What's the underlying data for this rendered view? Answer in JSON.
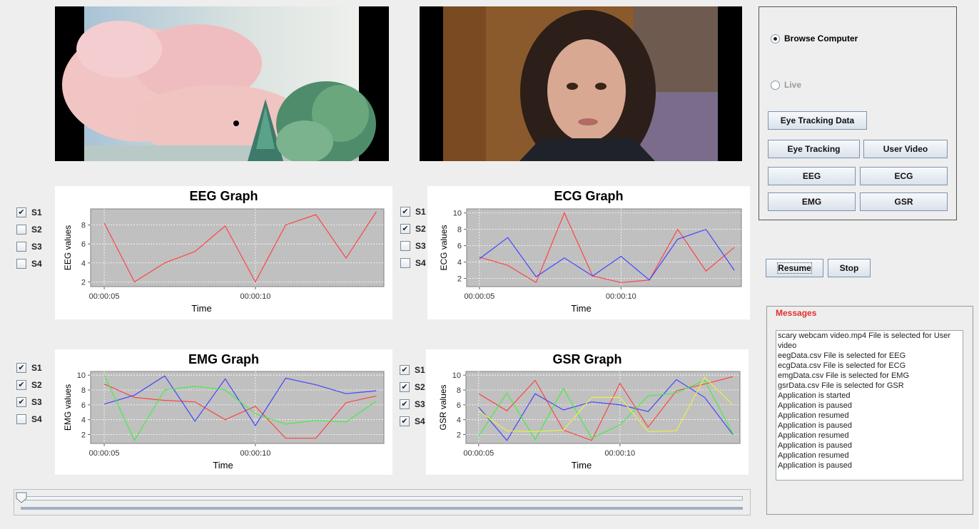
{
  "source": {
    "mode_browse_label": "Browse Computer",
    "mode_live_label": "Live",
    "mode_selected": "Browse Computer"
  },
  "buttons": {
    "eye_tracking_data": "Eye Tracking Data",
    "eye_tracking": "Eye Tracking",
    "user_video": "User Video",
    "eeg": "EEG",
    "ecg": "ECG",
    "emg": "EMG",
    "gsr": "GSR",
    "resume": "Resume",
    "stop": "Stop"
  },
  "colors": {
    "s1": "#ff4444",
    "s2": "#4444ff",
    "s3": "#44ee44",
    "s4": "#eeee44",
    "plot_bg": "#c0c0c0",
    "messages_title": "#e0312b"
  },
  "checkboxes": {
    "eeg": [
      {
        "label": "S1",
        "checked": true
      },
      {
        "label": "S2",
        "checked": false
      },
      {
        "label": "S3",
        "checked": false
      },
      {
        "label": "S4",
        "checked": false
      }
    ],
    "ecg": [
      {
        "label": "S1",
        "checked": true
      },
      {
        "label": "S2",
        "checked": true
      },
      {
        "label": "S3",
        "checked": false
      },
      {
        "label": "S4",
        "checked": false
      }
    ],
    "emg": [
      {
        "label": "S1",
        "checked": true
      },
      {
        "label": "S2",
        "checked": true
      },
      {
        "label": "S3",
        "checked": true
      },
      {
        "label": "S4",
        "checked": false
      }
    ],
    "gsr": [
      {
        "label": "S1",
        "checked": true
      },
      {
        "label": "S2",
        "checked": true
      },
      {
        "label": "S3",
        "checked": true
      },
      {
        "label": "S4",
        "checked": true
      }
    ]
  },
  "messages": {
    "title": "Messages",
    "lines": [
      "scary webcam video.mp4 File is selected for User video",
      "eegData.csv File is selected for EEG",
      "ecgData.csv File is selected for ECG",
      "emgData.csv File is selected for EMG",
      "gsrData.csv File is selected for GSR",
      "Application is started",
      "Application is paused",
      "Application resumed",
      "Application is paused",
      "Application resumed",
      "Application is paused",
      "Application resumed",
      "Application is paused"
    ]
  },
  "playback": {
    "position_fraction": 0.0
  },
  "chart_data": [
    {
      "id": "eeg",
      "type": "line",
      "title": "EEG Graph",
      "xlabel": "Time",
      "ylabel": "EEG values",
      "x": [
        5,
        6,
        7,
        8,
        9,
        10,
        11,
        12,
        13,
        14
      ],
      "x_ticks": [
        {
          "x": 5,
          "label": "00:00:05"
        },
        {
          "x": 10,
          "label": "00:00:10"
        }
      ],
      "ylim": [
        1.5,
        9.7
      ],
      "yticks": [
        2,
        4,
        6,
        8
      ],
      "grid": true,
      "series": [
        {
          "key": "s1",
          "values": [
            8.2,
            2.0,
            4.0,
            5.2,
            7.9,
            2.0,
            8.0,
            9.1,
            4.5,
            9.4
          ]
        }
      ]
    },
    {
      "id": "ecg",
      "type": "line",
      "title": "ECG Graph",
      "xlabel": "Time",
      "ylabel": "ECG values",
      "x": [
        5,
        6,
        7,
        8,
        9,
        10,
        11,
        12,
        13,
        14
      ],
      "x_ticks": [
        {
          "x": 5,
          "label": "00:00:05"
        },
        {
          "x": 10,
          "label": "00:00:10"
        }
      ],
      "ylim": [
        1.0,
        10.5
      ],
      "yticks": [
        2,
        4,
        6,
        8,
        10
      ],
      "grid": true,
      "series": [
        {
          "key": "s1",
          "values": [
            4.6,
            3.6,
            1.5,
            10.0,
            2.3,
            1.5,
            1.8,
            8.0,
            2.9,
            5.8
          ]
        },
        {
          "key": "s2",
          "values": [
            4.4,
            7.0,
            2.2,
            4.5,
            2.3,
            4.7,
            1.8,
            6.8,
            8.0,
            3.0
          ]
        }
      ]
    },
    {
      "id": "emg",
      "type": "line",
      "title": "EMG Graph",
      "xlabel": "Time",
      "ylabel": "EMG values",
      "x": [
        5,
        6,
        7,
        8,
        9,
        10,
        11,
        12,
        13,
        14
      ],
      "x_ticks": [
        {
          "x": 5,
          "label": "00:00:05"
        },
        {
          "x": 10,
          "label": "00:00:10"
        }
      ],
      "ylim": [
        0.8,
        10.5
      ],
      "yticks": [
        2,
        4,
        6,
        8,
        10
      ],
      "grid": true,
      "series": [
        {
          "key": "s1",
          "values": [
            8.8,
            7.0,
            6.6,
            6.4,
            4.0,
            5.8,
            1.5,
            1.5,
            6.3,
            7.2
          ]
        },
        {
          "key": "s2",
          "values": [
            6.1,
            7.3,
            9.9,
            3.8,
            9.5,
            3.2,
            9.6,
            8.7,
            7.5,
            7.9
          ]
        },
        {
          "key": "s3",
          "values": [
            10.0,
            1.2,
            8.0,
            8.5,
            8.0,
            4.8,
            3.4,
            3.9,
            3.7,
            6.5
          ]
        }
      ]
    },
    {
      "id": "gsr",
      "type": "line",
      "title": "GSR Graph",
      "xlabel": "Time",
      "ylabel": "GSR values",
      "x": [
        5,
        6,
        7,
        8,
        9,
        10,
        11,
        12,
        13,
        14
      ],
      "x_ticks": [
        {
          "x": 5,
          "label": "00:00:05"
        },
        {
          "x": 10,
          "label": "00:00:10"
        }
      ],
      "ylim": [
        0.8,
        10.5
      ],
      "yticks": [
        2,
        4,
        6,
        8,
        10
      ],
      "grid": true,
      "series": [
        {
          "key": "s1",
          "values": [
            7.5,
            5.2,
            9.3,
            2.6,
            1.2,
            8.9,
            3.0,
            7.9,
            8.8,
            9.8
          ]
        },
        {
          "key": "s2",
          "values": [
            5.7,
            1.2,
            7.5,
            5.3,
            6.4,
            6.0,
            5.1,
            9.4,
            7.0,
            2.0
          ]
        },
        {
          "key": "s3",
          "values": [
            1.8,
            7.6,
            1.3,
            8.2,
            1.5,
            3.3,
            7.2,
            7.6,
            9.3,
            2.1
          ]
        },
        {
          "key": "s4",
          "values": [
            5.2,
            2.5,
            2.4,
            2.6,
            7.0,
            7.0,
            2.4,
            2.5,
            9.7,
            6.0
          ]
        }
      ]
    }
  ]
}
